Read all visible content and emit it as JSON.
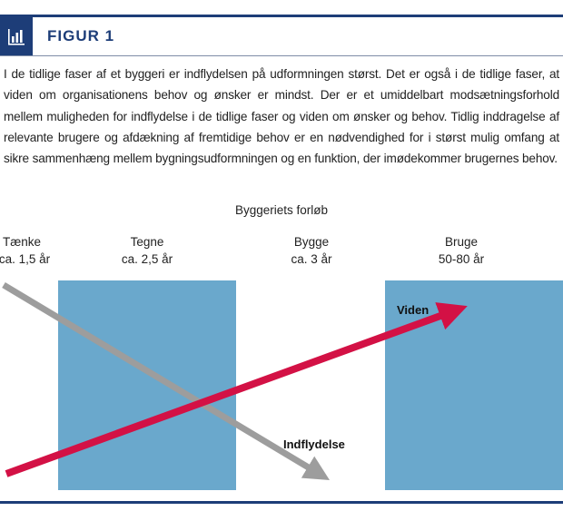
{
  "figure": {
    "label": "FIGUR 1",
    "icon": "bar-chart-icon",
    "caption": "I de tidlige faser af et byggeri er indflydelsen på udformningen størst. Det er også i de tidlige faser, at viden om organisationens behov og ønsker er mindst. Der er et umiddelbart modsætningsforhold mellem muligheden for indflydelse i de tidlige faser og viden om ønsker og behov. Tidlig inddragelse af relevante brugere og afdækning af fremtidige behov er en nødvendighed for i størst mulig omfang at sikre sammenhæng mellem bygningsudformningen og en funktion, der imødekommer brugernes behov."
  },
  "diagram": {
    "title": "Byggeriets forløb",
    "phases": [
      {
        "name": "Tænke",
        "duration": "ca. 1,5 år"
      },
      {
        "name": "Tegne",
        "duration": "ca. 2,5 år"
      },
      {
        "name": "Bygge",
        "duration": "ca. 3 år"
      },
      {
        "name": "Bruge",
        "duration": "50-80 år"
      }
    ],
    "arrows": {
      "knowledge": {
        "label": "Viden",
        "color": "#d31145"
      },
      "influence": {
        "label": "Indflydelse",
        "color": "#9d9d9d"
      }
    },
    "box_color": "#6aa8cc",
    "accent_color": "#1d3d78"
  }
}
